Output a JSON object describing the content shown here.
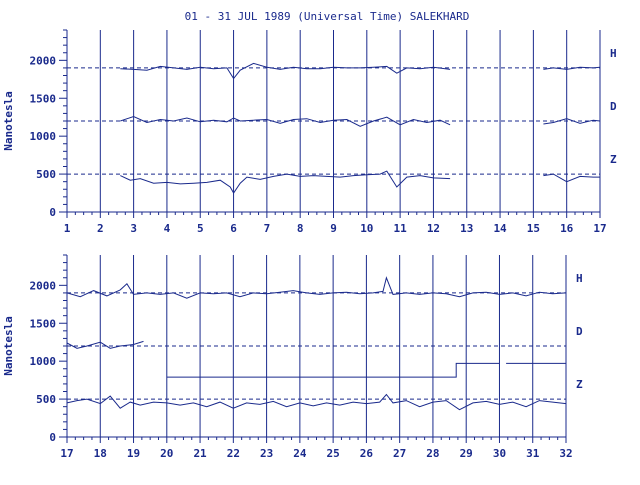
{
  "title": "01 - 31 JUL 1989 (Universal Time) SALEKHARD",
  "colors": {
    "axis": "#1a2a8c",
    "trace": "#1a2a8c",
    "baseline": "#1a2a8c",
    "background": "#ffffff"
  },
  "chart_data": [
    {
      "type": "line",
      "name": "panel-1",
      "xlabel": "",
      "ylabel": "Nanotesla",
      "xlim": [
        1,
        17
      ],
      "ylim": [
        0,
        2400
      ],
      "x_ticks": [
        1,
        2,
        3,
        4,
        5,
        6,
        7,
        8,
        9,
        10,
        11,
        12,
        13,
        14,
        15,
        16,
        17
      ],
      "y_ticks": [
        0,
        500,
        1000,
        1500,
        2000
      ],
      "grid": "vertical lines at each day",
      "series": [
        {
          "label": "H",
          "baseline": 1900,
          "segments": [
            {
              "x": [
                2.6,
                3.0,
                3.4,
                3.8,
                4.2,
                4.6,
                5.0,
                5.4,
                5.8,
                6.0,
                6.2,
                6.6,
                7.0,
                7.4,
                7.8,
                8.2,
                8.6,
                9.0,
                9.4,
                9.8,
                10.2,
                10.6,
                10.9,
                11.2,
                11.6,
                12.0,
                12.5
              ],
              "y": [
                1890,
                1880,
                1870,
                1920,
                1900,
                1880,
                1910,
                1890,
                1900,
                1760,
                1870,
                1960,
                1910,
                1880,
                1910,
                1890,
                1890,
                1910,
                1900,
                1900,
                1910,
                1920,
                1830,
                1900,
                1890,
                1910,
                1880
              ]
            },
            {
              "x": [
                15.3,
                15.6,
                16.0,
                16.4,
                16.8,
                17.0
              ],
              "y": [
                1880,
                1900,
                1880,
                1910,
                1900,
                1910
              ]
            }
          ]
        },
        {
          "label": "D",
          "baseline": 1200,
          "segments": [
            {
              "x": [
                2.6,
                3.0,
                3.4,
                3.8,
                4.2,
                4.6,
                5.0,
                5.4,
                5.8,
                6.0,
                6.2,
                6.6,
                7.0,
                7.4,
                7.8,
                8.2,
                8.6,
                9.0,
                9.4,
                9.8,
                10.2,
                10.6,
                11.0,
                11.4,
                11.8,
                12.2,
                12.5
              ],
              "y": [
                1200,
                1260,
                1180,
                1220,
                1200,
                1240,
                1190,
                1210,
                1190,
                1240,
                1200,
                1210,
                1220,
                1170,
                1220,
                1230,
                1180,
                1210,
                1220,
                1130,
                1200,
                1250,
                1150,
                1220,
                1180,
                1210,
                1150
              ]
            },
            {
              "x": [
                15.3,
                15.6,
                16.0,
                16.4,
                16.8,
                17.0
              ],
              "y": [
                1160,
                1180,
                1230,
                1170,
                1210,
                1200
              ]
            }
          ]
        },
        {
          "label": "Z",
          "baseline": 500,
          "segments": [
            {
              "x": [
                2.6,
                2.9,
                3.2,
                3.6,
                4.0,
                4.4,
                4.8,
                5.2,
                5.6,
                5.9,
                6.0,
                6.2,
                6.4,
                6.8,
                7.2,
                7.6,
                8.0,
                8.4,
                8.8,
                9.2,
                9.6,
                10.0,
                10.4,
                10.6,
                10.9,
                11.2,
                11.6,
                12.0,
                12.5
              ],
              "y": [
                480,
                420,
                440,
                380,
                390,
                370,
                380,
                390,
                420,
                330,
                250,
                380,
                460,
                430,
                470,
                500,
                470,
                480,
                470,
                460,
                480,
                490,
                500,
                540,
                330,
                460,
                480,
                450,
                440
              ]
            },
            {
              "x": [
                15.3,
                15.6,
                16.0,
                16.4,
                16.8,
                17.0
              ],
              "y": [
                480,
                500,
                400,
                470,
                460,
                460
              ]
            }
          ]
        }
      ]
    },
    {
      "type": "line",
      "name": "panel-2",
      "xlabel": "",
      "ylabel": "Nanotesla",
      "xlim": [
        17,
        32
      ],
      "ylim": [
        0,
        2400
      ],
      "x_ticks": [
        17,
        18,
        19,
        20,
        21,
        22,
        23,
        24,
        25,
        26,
        27,
        28,
        29,
        30,
        31,
        32
      ],
      "y_ticks": [
        0,
        500,
        1000,
        1500,
        2000
      ],
      "grid": "vertical lines at each day",
      "series": [
        {
          "label": "H",
          "baseline": 1900,
          "segments": [
            {
              "x": [
                17.0,
                17.4,
                17.8,
                18.2,
                18.6,
                18.8,
                19.0,
                19.4,
                19.8,
                20.2,
                20.6,
                21.0,
                21.4,
                21.8,
                22.2,
                22.6,
                23.0,
                23.4,
                23.8,
                24.2,
                24.6,
                25.0,
                25.4,
                25.8,
                26.2,
                26.5,
                26.6,
                26.8,
                27.2,
                27.6,
                28.0,
                28.4,
                28.8,
                29.2,
                29.6,
                30.0,
                30.4,
                30.8,
                31.2,
                31.6,
                32.0
              ],
              "y": [
                1900,
                1850,
                1930,
                1860,
                1940,
                2020,
                1880,
                1900,
                1880,
                1900,
                1830,
                1900,
                1890,
                1900,
                1850,
                1900,
                1890,
                1910,
                1930,
                1900,
                1880,
                1900,
                1910,
                1890,
                1900,
                1920,
                2100,
                1880,
                1900,
                1880,
                1900,
                1890,
                1850,
                1900,
                1910,
                1880,
                1900,
                1860,
                1910,
                1890,
                1900
              ]
            }
          ]
        },
        {
          "label": "D",
          "baseline": 1200,
          "segments": [
            {
              "x": [
                17.0,
                17.3,
                17.6,
                18.0,
                18.3,
                18.6,
                19.0,
                19.3
              ],
              "y": [
                1240,
                1170,
                1200,
                1250,
                1170,
                1200,
                1220,
                1260
              ]
            },
            {
              "x": [
                20.0,
                28.7,
                28.7,
                30.0
              ],
              "y": [
                790,
                790,
                970,
                970
              ]
            },
            {
              "x": [
                30.2,
                32.0
              ],
              "y": [
                970,
                970
              ]
            }
          ]
        },
        {
          "label": "Z",
          "baseline": 500,
          "segments": [
            {
              "x": [
                17.0,
                17.3,
                17.6,
                18.0,
                18.3,
                18.6,
                18.9,
                19.2,
                19.6,
                20.0,
                20.4,
                20.8,
                21.2,
                21.6,
                22.0,
                22.4,
                22.8,
                23.2,
                23.6,
                24.0,
                24.4,
                24.8,
                25.2,
                25.6,
                26.0,
                26.4,
                26.6,
                26.8,
                27.2,
                27.6,
                28.0,
                28.4,
                28.8,
                29.2,
                29.6,
                30.0,
                30.4,
                30.8,
                31.2,
                31.6,
                32.0
              ],
              "y": [
                450,
                480,
                500,
                440,
                540,
                380,
                460,
                420,
                460,
                450,
                420,
                450,
                400,
                460,
                380,
                450,
                430,
                470,
                400,
                450,
                410,
                450,
                420,
                460,
                440,
                460,
                560,
                450,
                480,
                400,
                460,
                480,
                360,
                450,
                470,
                430,
                460,
                400,
                480,
                460,
                440
              ]
            }
          ]
        }
      ]
    }
  ]
}
